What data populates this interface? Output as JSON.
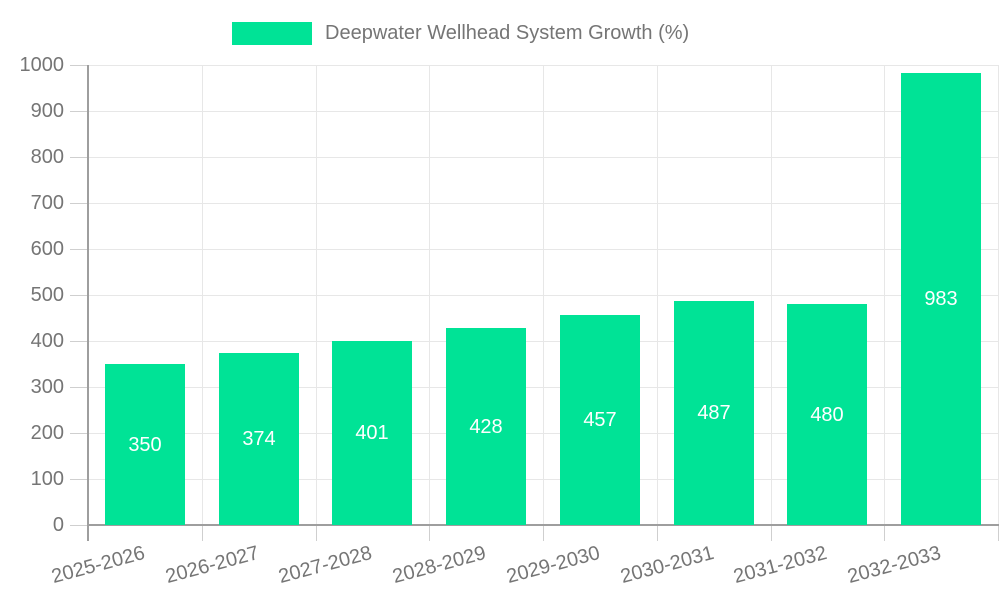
{
  "chart_data": {
    "type": "bar",
    "title": "Deepwater Wellhead System Growth (%)",
    "series": [
      {
        "name": "Deepwater Wellhead System Growth (%)",
        "values": [
          350,
          374,
          401,
          428,
          457,
          487,
          480,
          983
        ]
      }
    ],
    "categories": [
      "2025-2026",
      "2026-2027",
      "2027-2028",
      "2028-2029",
      "2029-2030",
      "2030-2031",
      "2031-2032",
      "2032-2033"
    ],
    "bar_value_labels": [
      "350",
      "374",
      "401",
      "428",
      "457",
      "487",
      "480",
      "983"
    ],
    "xlabel": "",
    "ylabel": "",
    "ylim": [
      0,
      1000
    ],
    "y_tick_step": 100,
    "y_tick_labels": [
      "0",
      "100",
      "200",
      "300",
      "400",
      "500",
      "600",
      "700",
      "800",
      "900",
      "1000"
    ],
    "grid": true,
    "legend_position": "top-center",
    "x_label_rotation_deg": -15,
    "colors": {
      "bar": "#00E396",
      "bar_value_text": "#ffffff",
      "axis_text": "#757575",
      "legend_text": "#757575",
      "gridline": "#e7e7e7",
      "tick": "#cfcfcf",
      "axis_line": "#9e9e9e",
      "background": "#ffffff"
    }
  }
}
